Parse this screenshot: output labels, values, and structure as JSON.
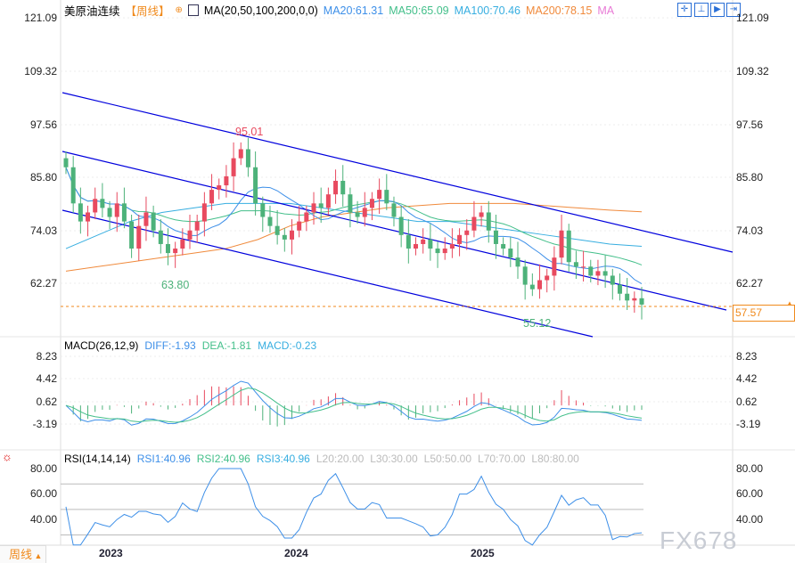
{
  "header": {
    "symbol": "美原油连续",
    "period": "【周线】",
    "indicator": "MA(20,50,100,200,0,0)",
    "ma20": "MA20:61.31",
    "ma50": "MA50:65.09",
    "ma100": "MA100:70.46",
    "ma200": "MA200:78.15",
    "ma_extra": "MA"
  },
  "colors": {
    "up": "#e84a5f",
    "down": "#4db27a",
    "ma20": "#3d8fe8",
    "ma50": "#43bf8a",
    "ma100": "#37aee0",
    "ma200": "#f08a3c",
    "channel": "#0000dd",
    "price_tag": "#f08a1c"
  },
  "toolbar": [
    "crosshair-icon",
    "zoom-in-icon",
    "zoom-out-icon",
    "exit-icon"
  ],
  "price_axis": [
    "121.09",
    "109.32",
    "97.56",
    "85.80",
    "74.03",
    "62.27"
  ],
  "current_price": "57.57",
  "high_label": "95.01",
  "low_label_1": "63.80",
  "low_label_2": "55.12",
  "closes": [
    88,
    80,
    76,
    78,
    81,
    79,
    77,
    80,
    76,
    70,
    75,
    78,
    74,
    71,
    69,
    70,
    72,
    74,
    76,
    80,
    83,
    84,
    86,
    90,
    92,
    88,
    80,
    77,
    75,
    73,
    72,
    74,
    76,
    78,
    80,
    79,
    82,
    85,
    82,
    78,
    77,
    79,
    81,
    83,
    80,
    77,
    73,
    70,
    71,
    72,
    70,
    69,
    70,
    71,
    73,
    74,
    77,
    78,
    74,
    71,
    70,
    68,
    66,
    62,
    61,
    63,
    64,
    68,
    74,
    67,
    66,
    66,
    64,
    65,
    64,
    62,
    60,
    58.5,
    59,
    57.6
  ],
  "ma100": [
    70,
    73,
    76,
    78,
    79,
    80,
    80,
    80,
    79,
    78,
    77,
    76,
    76,
    75,
    74,
    73,
    72,
    71,
    70.5
  ],
  "ma200": [
    65,
    66,
    67,
    68,
    69,
    70,
    72,
    75,
    77,
    78,
    79,
    79.5,
    80,
    80,
    80,
    79.5,
    79,
    78.5,
    78.15
  ],
  "macd": {
    "title": "MACD(26,12,9)",
    "diff": "DIFF:-1.93",
    "dea": "DEA:-1.81",
    "macd": "MACD:-0.23",
    "axis": [
      "8.23",
      "4.42",
      "0.62",
      "-3.19"
    ]
  },
  "rsi": {
    "title": "RSI(14,14,14)",
    "rsi1": "RSI1:40.96",
    "rsi2": "RSI2:40.96",
    "rsi3": "RSI3:40.96",
    "l20": "L20:20.00",
    "l30": "L30:30.00",
    "l50": "L50:50.00",
    "l70": "L70:70.00",
    "l80": "L80:80.00",
    "axis": [
      "80.00",
      "60.00",
      "40.00"
    ]
  },
  "time_axis": [
    "2023",
    "2024",
    "2025"
  ],
  "period_button": "周线",
  "watermark": "FX678"
}
